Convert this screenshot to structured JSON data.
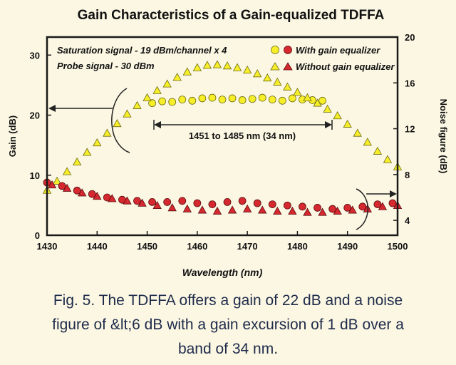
{
  "chart_data": {
    "type": "scatter",
    "title": "Gain Characteristics of a Gain-equalized TDFFA",
    "xlabel": "Wavelength (nm)",
    "ylabel_left": "Gain (dB)",
    "ylabel_right": "Noise figure (dB)",
    "xlim": [
      1430,
      1500
    ],
    "ylim_left": [
      0,
      33
    ],
    "ylim_right": [
      2.7,
      20
    ],
    "x_ticks": [
      "1430",
      "1440",
      "1450",
      "1460",
      "1470",
      "1480",
      "1490",
      "1500"
    ],
    "y_left_ticks": [
      "0",
      "10",
      "20",
      "30"
    ],
    "y_right_ticks": [
      "4",
      "8",
      "12",
      "16",
      "20"
    ],
    "annotations": {
      "line1": "Saturation signal - 19 dBm/channel x 4",
      "line2": "Probe signal - 30 dBm",
      "band": "1451 to 1485 nm (34 nm)"
    },
    "legend": {
      "placement": "top-right",
      "with_eq": "With gain equalizer",
      "without_eq": "Without gain equalizer"
    },
    "colors": {
      "gain_marker": "#f7ee2a",
      "noise_marker": "#d6282f",
      "frame": "#1a1a1a"
    },
    "series": [
      {
        "name": "With gain equalizer",
        "quantity": "gain",
        "marker": "circle",
        "x": [
          1451,
          1453,
          1455,
          1457,
          1459,
          1461,
          1463,
          1465,
          1467,
          1469,
          1471,
          1473,
          1475,
          1477,
          1479,
          1481,
          1483,
          1485
        ],
        "y": [
          22.0,
          22.3,
          22.2,
          22.6,
          22.4,
          22.8,
          22.9,
          22.6,
          22.8,
          22.5,
          22.7,
          22.9,
          22.6,
          22.4,
          22.8,
          22.6,
          22.5,
          22.4
        ]
      },
      {
        "name": "Without gain equalizer",
        "quantity": "gain",
        "marker": "triangle",
        "x": [
          1430,
          1432,
          1434,
          1436,
          1438,
          1440,
          1442,
          1444,
          1446,
          1448,
          1450,
          1452,
          1454,
          1456,
          1458,
          1460,
          1462,
          1464,
          1466,
          1468,
          1470,
          1472,
          1474,
          1476,
          1478,
          1480,
          1482,
          1484,
          1486,
          1488,
          1490,
          1492,
          1494,
          1496,
          1498,
          1500
        ],
        "y": [
          7.5,
          9.0,
          10.6,
          12.2,
          13.8,
          15.4,
          17.0,
          18.6,
          20.2,
          21.6,
          22.9,
          24.1,
          25.2,
          26.3,
          27.2,
          27.9,
          28.3,
          28.4,
          28.2,
          27.9,
          27.5,
          26.9,
          26.2,
          25.5,
          24.7,
          23.8,
          22.9,
          22.0,
          21.0,
          19.9,
          18.5,
          17.0,
          15.5,
          14.0,
          12.6,
          11.4
        ]
      },
      {
        "name": "With gain equalizer",
        "quantity": "noise figure",
        "marker": "circle",
        "x": [
          1430,
          1433,
          1436,
          1439,
          1442,
          1445,
          1448,
          1451,
          1454,
          1457,
          1460,
          1463,
          1466,
          1469,
          1472,
          1475,
          1478,
          1481,
          1484,
          1487,
          1490,
          1493,
          1496,
          1499
        ],
        "y": [
          7.3,
          7.0,
          6.6,
          6.3,
          6.0,
          5.8,
          5.7,
          5.6,
          5.6,
          5.7,
          5.5,
          5.4,
          5.6,
          5.7,
          5.5,
          5.4,
          5.3,
          5.2,
          5.1,
          5.0,
          5.1,
          5.2,
          5.4,
          5.5
        ]
      },
      {
        "name": "Without gain equalizer",
        "quantity": "noise figure",
        "marker": "triangle",
        "x": [
          1431,
          1434,
          1437,
          1440,
          1443,
          1446,
          1449,
          1452,
          1455,
          1458,
          1461,
          1464,
          1467,
          1470,
          1473,
          1476,
          1479,
          1482,
          1485,
          1488,
          1491,
          1494,
          1497,
          1500
        ],
        "y": [
          7.1,
          6.8,
          6.4,
          6.1,
          5.9,
          5.7,
          5.5,
          5.3,
          5.1,
          5.0,
          4.9,
          4.8,
          4.9,
          5.0,
          4.9,
          4.8,
          4.8,
          4.7,
          4.7,
          4.8,
          4.9,
          5.0,
          5.2,
          5.3
        ]
      }
    ]
  },
  "caption": {
    "line1": "Fig. 5. The TDFFA offers a gain of 22 dB and a noise",
    "line2": "figure of &lt;6 dB with a gain excursion of 1 dB over a",
    "line3": "band of 34 nm."
  }
}
